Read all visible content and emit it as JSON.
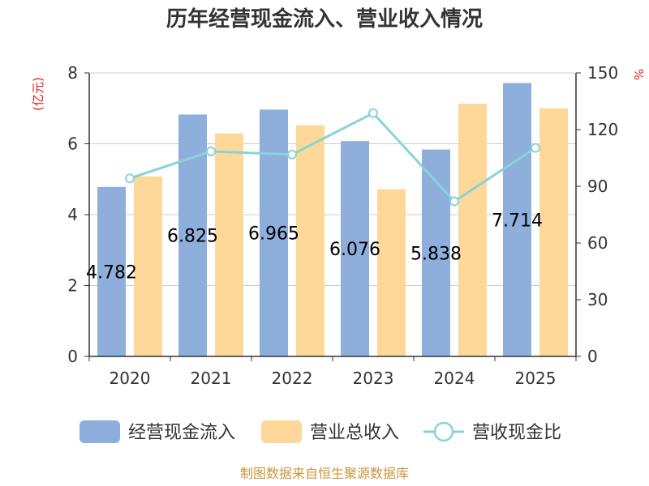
{
  "chart_data": {
    "type": "bar+line",
    "title": "历年经营现金流入、营业收入情况",
    "categories": [
      "2020",
      "2021",
      "2022",
      "2023",
      "2024",
      "2025"
    ],
    "left_axis": {
      "unit": "(亿元)",
      "ylim": [
        0,
        8
      ],
      "ticks": [
        "0",
        "2",
        "4",
        "6",
        "8"
      ]
    },
    "right_axis": {
      "unit": "%",
      "ylim": [
        0,
        150
      ],
      "ticks": [
        "0",
        "30",
        "60",
        "90",
        "120",
        "150"
      ]
    },
    "grid": true,
    "legend_position": "bottom",
    "series": [
      {
        "name": "经营现金流入",
        "type": "bar",
        "axis": "left",
        "color": "#8eaedb",
        "values": [
          4.782,
          6.825,
          6.965,
          6.076,
          5.838,
          7.714
        ],
        "labels": [
          "4.782",
          "6.825",
          "6.965",
          "6.076",
          "5.838",
          "7.714"
        ]
      },
      {
        "name": "营业总收入",
        "type": "bar",
        "axis": "left",
        "color": "#fed898",
        "values": [
          5.08,
          6.29,
          6.52,
          4.72,
          7.13,
          7.0
        ]
      },
      {
        "name": "营收现金比",
        "type": "line",
        "axis": "right",
        "color": "#89d3d8",
        "values": [
          94.2,
          108.5,
          106.8,
          128.7,
          82.0,
          110.3
        ]
      }
    ],
    "source": "制图数据来自恒生聚源数据库"
  }
}
